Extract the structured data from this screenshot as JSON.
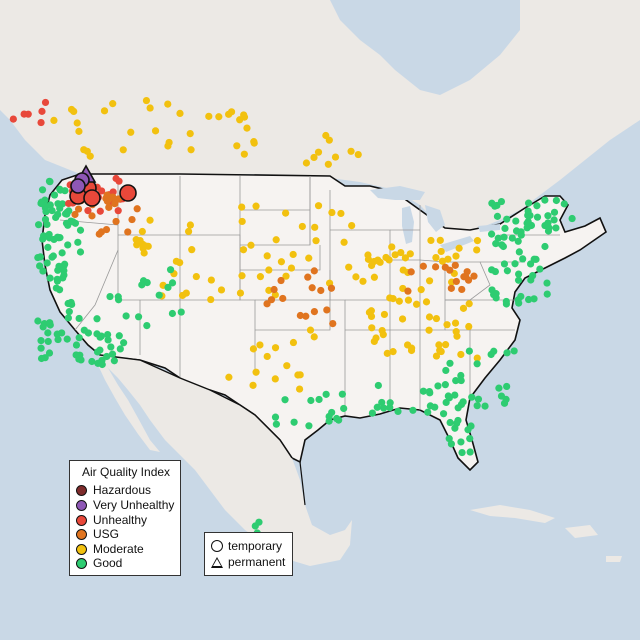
{
  "legend": {
    "title": "Air Quality Index",
    "categories": [
      {
        "label": "Hazardous",
        "color": "#7e2b2b"
      },
      {
        "label": "Very Unhealthy",
        "color": "#8e57b5"
      },
      {
        "label": "Unhealthy",
        "color": "#e8483a"
      },
      {
        "label": "USG",
        "color": "#e0741f"
      },
      {
        "label": "Moderate",
        "color": "#f2c10f"
      },
      {
        "label": "Good",
        "color": "#2ecc71"
      }
    ]
  },
  "site_types": {
    "temporary": "temporary",
    "permanent": "permanent"
  },
  "colors": {
    "water": "#c9d8e6",
    "land": "#f1eeea",
    "us_land": "#f6f3f1"
  }
}
